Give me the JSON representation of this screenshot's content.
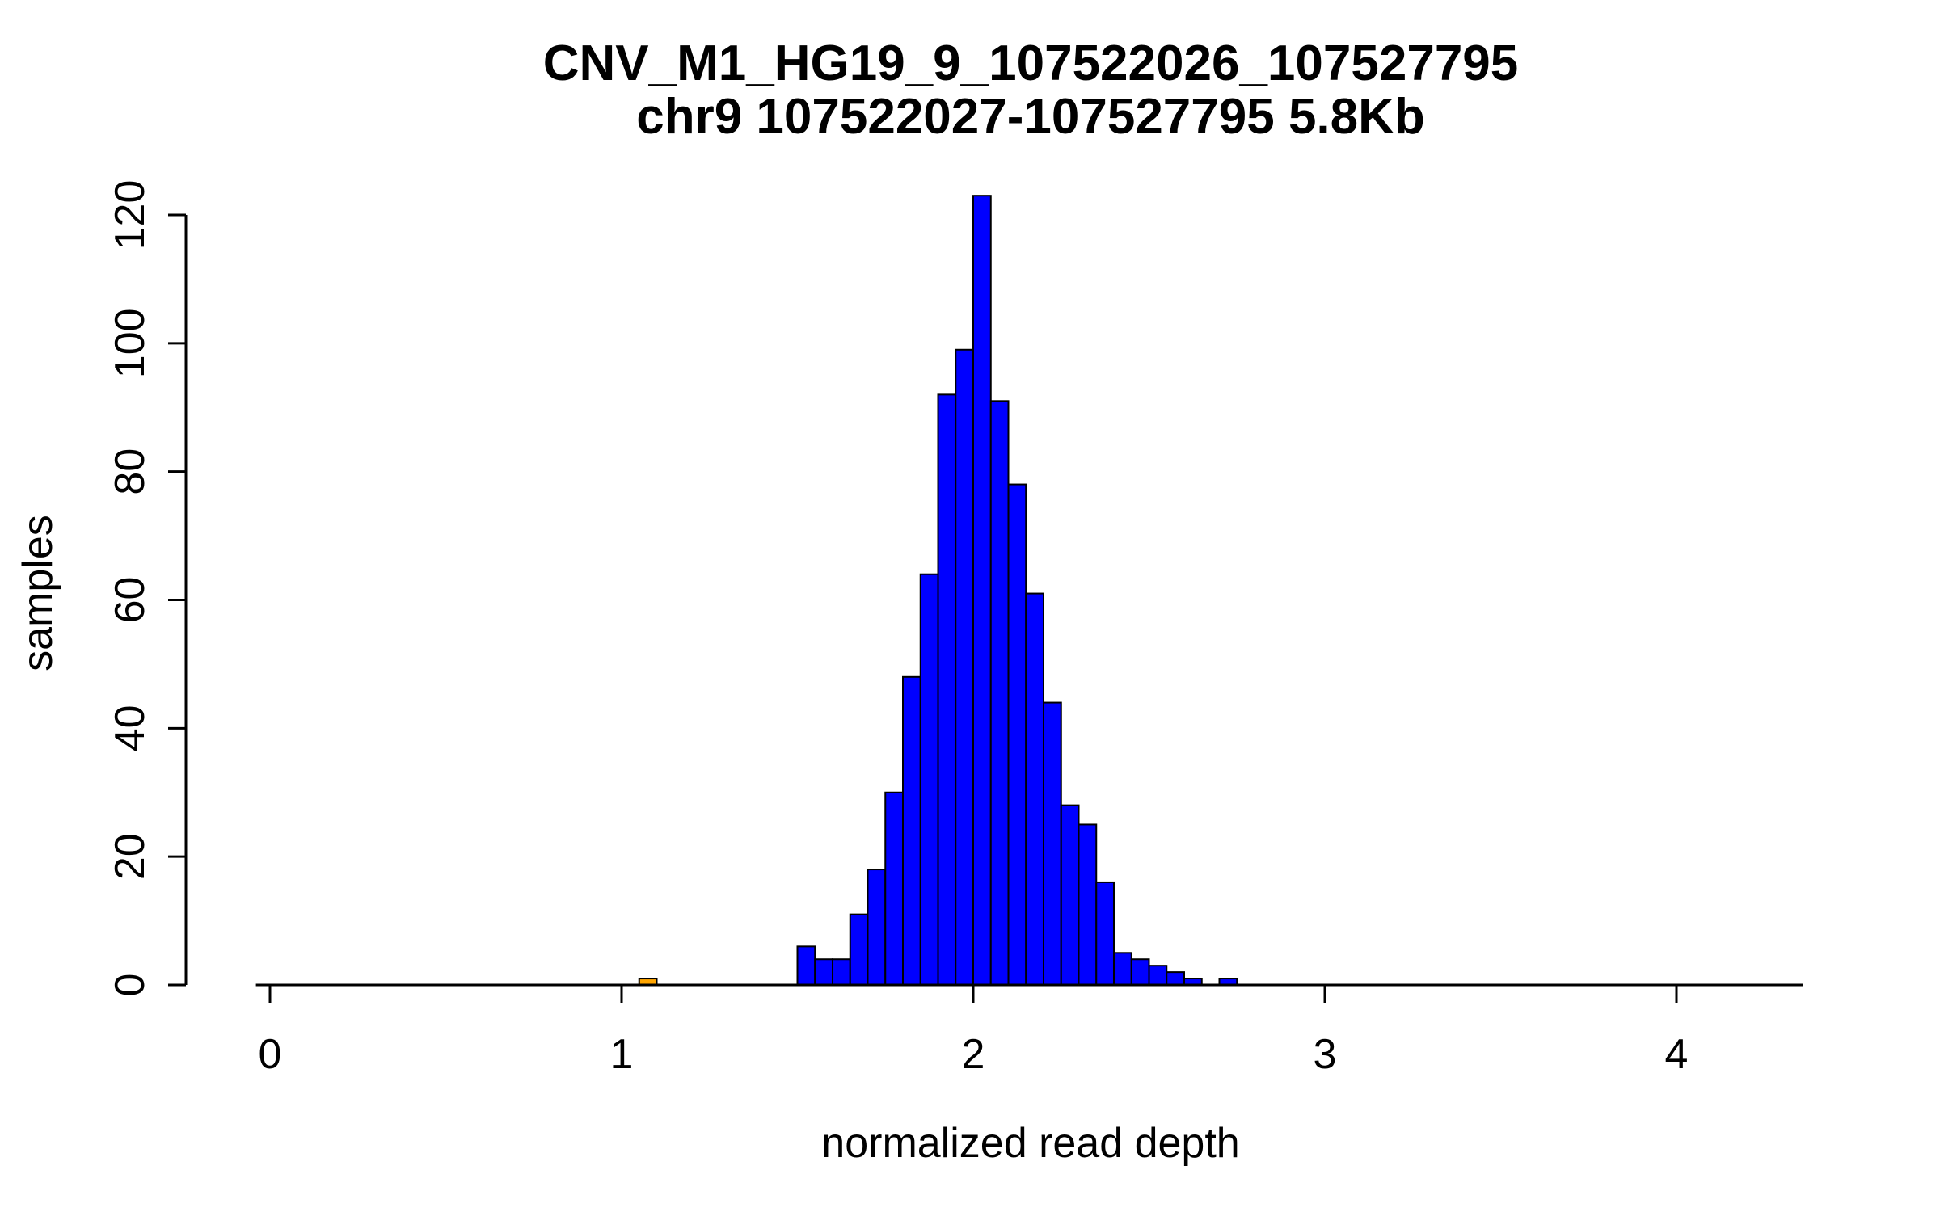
{
  "figure": {
    "title": "CNV_M1_HG19_9_107522026_107527795",
    "subtitle": "chr9 107522027-107527795 5.8Kb",
    "xlabel": "normalized read depth",
    "ylabel": "samples"
  },
  "chart_data": {
    "type": "bar",
    "chart_kind": "histogram",
    "title": "CNV_M1_HG19_9_107522026_107527795",
    "subtitle": "chr9 107522027-107527795 5.8Kb",
    "xlabel": "normalized read depth",
    "ylabel": "samples",
    "bin_width": 0.05,
    "xlim": [
      -0.04,
      4.36
    ],
    "ylim": [
      0,
      120
    ],
    "x_ticks": [
      0,
      1,
      2,
      3,
      4
    ],
    "y_ticks": [
      0,
      20,
      40,
      60,
      80,
      100,
      120
    ],
    "grid": false,
    "legend": "none",
    "default_bar_color": "#0000FF",
    "bar_stroke_color": "#000000",
    "highlight_bar_color": "#FFA500",
    "bars": [
      {
        "x": 1.05,
        "count": 1,
        "color": "#FFA500"
      },
      {
        "x": 1.5,
        "count": 6
      },
      {
        "x": 1.55,
        "count": 4
      },
      {
        "x": 1.6,
        "count": 4
      },
      {
        "x": 1.65,
        "count": 11
      },
      {
        "x": 1.7,
        "count": 18
      },
      {
        "x": 1.75,
        "count": 30
      },
      {
        "x": 1.8,
        "count": 48
      },
      {
        "x": 1.85,
        "count": 64
      },
      {
        "x": 1.9,
        "count": 92
      },
      {
        "x": 1.95,
        "count": 99
      },
      {
        "x": 2.0,
        "count": 123
      },
      {
        "x": 2.05,
        "count": 91
      },
      {
        "x": 2.1,
        "count": 78
      },
      {
        "x": 2.15,
        "count": 61
      },
      {
        "x": 2.2,
        "count": 44
      },
      {
        "x": 2.25,
        "count": 28
      },
      {
        "x": 2.3,
        "count": 25
      },
      {
        "x": 2.35,
        "count": 16
      },
      {
        "x": 2.4,
        "count": 5
      },
      {
        "x": 2.45,
        "count": 4
      },
      {
        "x": 2.5,
        "count": 3
      },
      {
        "x": 2.55,
        "count": 2
      },
      {
        "x": 2.6,
        "count": 1
      },
      {
        "x": 2.7,
        "count": 1
      }
    ]
  }
}
